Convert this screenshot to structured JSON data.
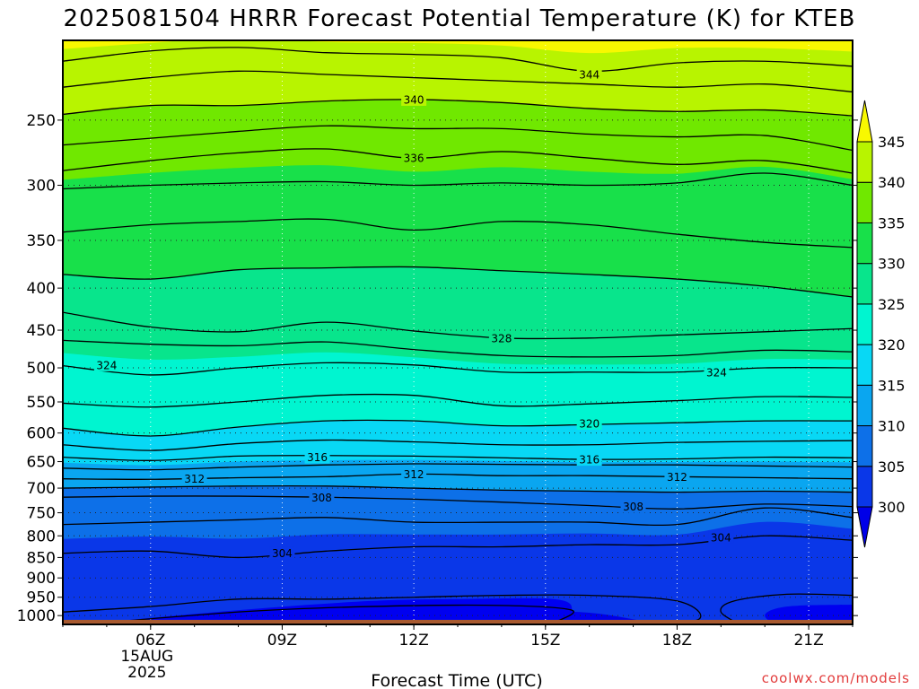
{
  "title": "2025081504 HRRR Forecast Potential Temperature (K) for KTEB",
  "credit": "coolwx.com/models",
  "chart_data": {
    "type": "heatmap",
    "title": "2025081504 HRRR Forecast Potential Temperature (K) for KTEB",
    "xlabel": "Forecast Time (UTC)",
    "ylabel": "",
    "x_ticks": [
      {
        "hour": 6,
        "label": "06Z",
        "sub": [
          "15AUG",
          "2025"
        ]
      },
      {
        "hour": 9,
        "label": "09Z",
        "sub": []
      },
      {
        "hour": 12,
        "label": "12Z",
        "sub": []
      },
      {
        "hour": 15,
        "label": "15Z",
        "sub": []
      },
      {
        "hour": 18,
        "label": "18Z",
        "sub": []
      },
      {
        "hour": 21,
        "label": "21Z",
        "sub": []
      }
    ],
    "xlim": [
      4,
      22
    ],
    "y_ticks": [
      250,
      300,
      350,
      400,
      450,
      500,
      550,
      600,
      650,
      700,
      750,
      800,
      850,
      900,
      950,
      1000
    ],
    "ylim_hPa": [
      200,
      1025
    ],
    "y_scale": "log-pressure",
    "colorbar": {
      "levels": [
        300,
        305,
        310,
        315,
        320,
        325,
        330,
        335,
        340,
        345
      ],
      "labels": [
        "300",
        "305",
        "310",
        "315",
        "320",
        "325",
        "330",
        "335",
        "340",
        "345"
      ],
      "colors": [
        "#0000e8",
        "#0a37e8",
        "#0d70e8",
        "#0aa6f0",
        "#08d8f5",
        "#00f5d0",
        "#08e58c",
        "#18e04a",
        "#70e800",
        "#b8f400",
        "#f8f800"
      ],
      "extend": "both"
    },
    "contour_interval": 4,
    "contour_labels": [
      {
        "value": 344,
        "hour": 16.0,
        "p": 220
      },
      {
        "value": 340,
        "hour": 12.0,
        "p": 236
      },
      {
        "value": 336,
        "hour": 12.0,
        "p": 278
      },
      {
        "value": 328,
        "hour": 14.0,
        "p": 460
      },
      {
        "value": 324,
        "hour": 5.0,
        "p": 496
      },
      {
        "value": 324,
        "hour": 18.9,
        "p": 506
      },
      {
        "value": 320,
        "hour": 16.0,
        "p": 584
      },
      {
        "value": 316,
        "hour": 9.8,
        "p": 642
      },
      {
        "value": 316,
        "hour": 16.0,
        "p": 646
      },
      {
        "value": 312,
        "hour": 7.0,
        "p": 682
      },
      {
        "value": 312,
        "hour": 12.0,
        "p": 673
      },
      {
        "value": 312,
        "hour": 18.0,
        "p": 678
      },
      {
        "value": 308,
        "hour": 9.9,
        "p": 719
      },
      {
        "value": 308,
        "hour": 17.0,
        "p": 737
      },
      {
        "value": 304,
        "hour": 9.0,
        "p": 840
      },
      {
        "value": 304,
        "hour": 19.0,
        "p": 803
      }
    ],
    "isentropes_hPa": {
      "hours": [
        4,
        6,
        8,
        10,
        12,
        14,
        16,
        18,
        20,
        22
      ],
      "levels": {
        "300": [
          1035,
          1025,
          1010,
          1000,
          993,
          990,
          992,
          1030,
          1040,
          1040
        ],
        "302": [
          980,
          975,
          955,
          955,
          950,
          945,
          945,
          960,
          1000,
          1000
        ],
        "304": [
          840,
          835,
          850,
          835,
          825,
          825,
          820,
          820,
          800,
          810
        ],
        "306": [
          775,
          770,
          765,
          760,
          770,
          770,
          770,
          775,
          740,
          760
        ],
        "308": [
          718,
          716,
          716,
          718,
          722,
          728,
          735,
          742,
          732,
          737
        ],
        "310": [
          700,
          698,
          696,
          696,
          700,
          704,
          706,
          708,
          706,
          708
        ],
        "312": [
          682,
          683,
          680,
          678,
          673,
          676,
          676,
          678,
          680,
          682
        ],
        "314": [
          662,
          665,
          660,
          656,
          654,
          655,
          656,
          656,
          658,
          660
        ],
        "316": [
          642,
          648,
          640,
          639,
          640,
          643,
          646,
          645,
          642,
          643
        ],
        "318": [
          620,
          630,
          618,
          612,
          615,
          620,
          620,
          616,
          614,
          613
        ],
        "320": [
          592,
          605,
          590,
          580,
          580,
          588,
          586,
          583,
          580,
          580
        ],
        "322": [
          552,
          558,
          550,
          540,
          540,
          556,
          553,
          548,
          542,
          543
        ],
        "324": [
          497,
          510,
          500,
          493,
          496,
          506,
          506,
          506,
          500,
          500
        ],
        "326": [
          463,
          468,
          470,
          465,
          475,
          483,
          485,
          483,
          476,
          478
        ],
        "328": [
          428,
          446,
          452,
          440,
          451,
          460,
          460,
          456,
          452,
          448
        ],
        "330": [
          385,
          390,
          380,
          378,
          377,
          381,
          385,
          390,
          398,
          410
        ],
        "332": [
          342,
          335,
          332,
          330,
          340,
          332,
          335,
          344,
          352,
          357
        ],
        "334": [
          303,
          300,
          298,
          297,
          300,
          298,
          300,
          298,
          290,
          300
        ],
        "336": [
          288,
          280,
          274,
          271,
          278,
          273,
          278,
          283,
          280,
          290
        ],
        "338": [
          268,
          263,
          258,
          254,
          256,
          256,
          260,
          262,
          261,
          272
        ],
        "340": [
          246,
          240,
          240,
          237,
          236,
          238,
          242,
          244,
          243,
          247
        ],
        "342": [
          228,
          222,
          218,
          220,
          222,
          224,
          226,
          228,
          226,
          231
        ],
        "344": [
          212,
          206,
          204,
          207,
          208,
          210,
          218,
          213,
          212,
          215
        ],
        "346": [
          198,
          197,
          193,
          195,
          195,
          196,
          197,
          196,
          197,
          198
        ]
      }
    }
  }
}
